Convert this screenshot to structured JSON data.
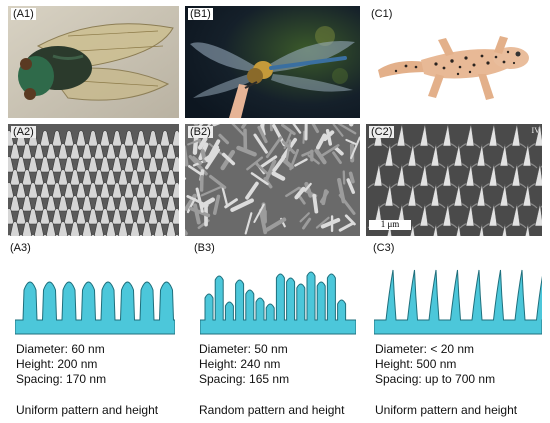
{
  "colors": {
    "structure_fill": "#4cc7da",
    "structure_stroke": "#1f6f7c"
  },
  "columns": [
    {
      "photo_label": "(A1)",
      "photo_icon": "cicada-photo",
      "sem_label": "(A2)",
      "sem_icon": "sem-uniform-nanopillars",
      "diagram_label": "(A3)",
      "diameter": "Diameter: 60 nm",
      "height": "Height: 200 nm",
      "spacing": "Spacing: 170 nm",
      "pattern": "Uniform pattern and height"
    },
    {
      "photo_label": "(B1)",
      "photo_icon": "dragonfly-photo",
      "sem_label": "(B2)",
      "sem_icon": "sem-random-nanopillars",
      "diagram_label": "(B3)",
      "diameter": "Diameter: 50 nm",
      "height": "Height: 240 nm",
      "spacing": "Spacing: 165 nm",
      "pattern": "Random pattern and height"
    },
    {
      "photo_label": "(C1)",
      "photo_icon": "gecko-photo",
      "sem_label": "(C2)",
      "sem_icon": "sem-spinules",
      "diagram_label": "(C3)",
      "diameter": "Diameter: < 20 nm",
      "height": "Height: 500 nm",
      "spacing": "Spacing: up to 700 nm",
      "pattern": "Uniform pattern and height",
      "sem_corner_mark": "IV",
      "scale_bar": "1 μm"
    }
  ]
}
